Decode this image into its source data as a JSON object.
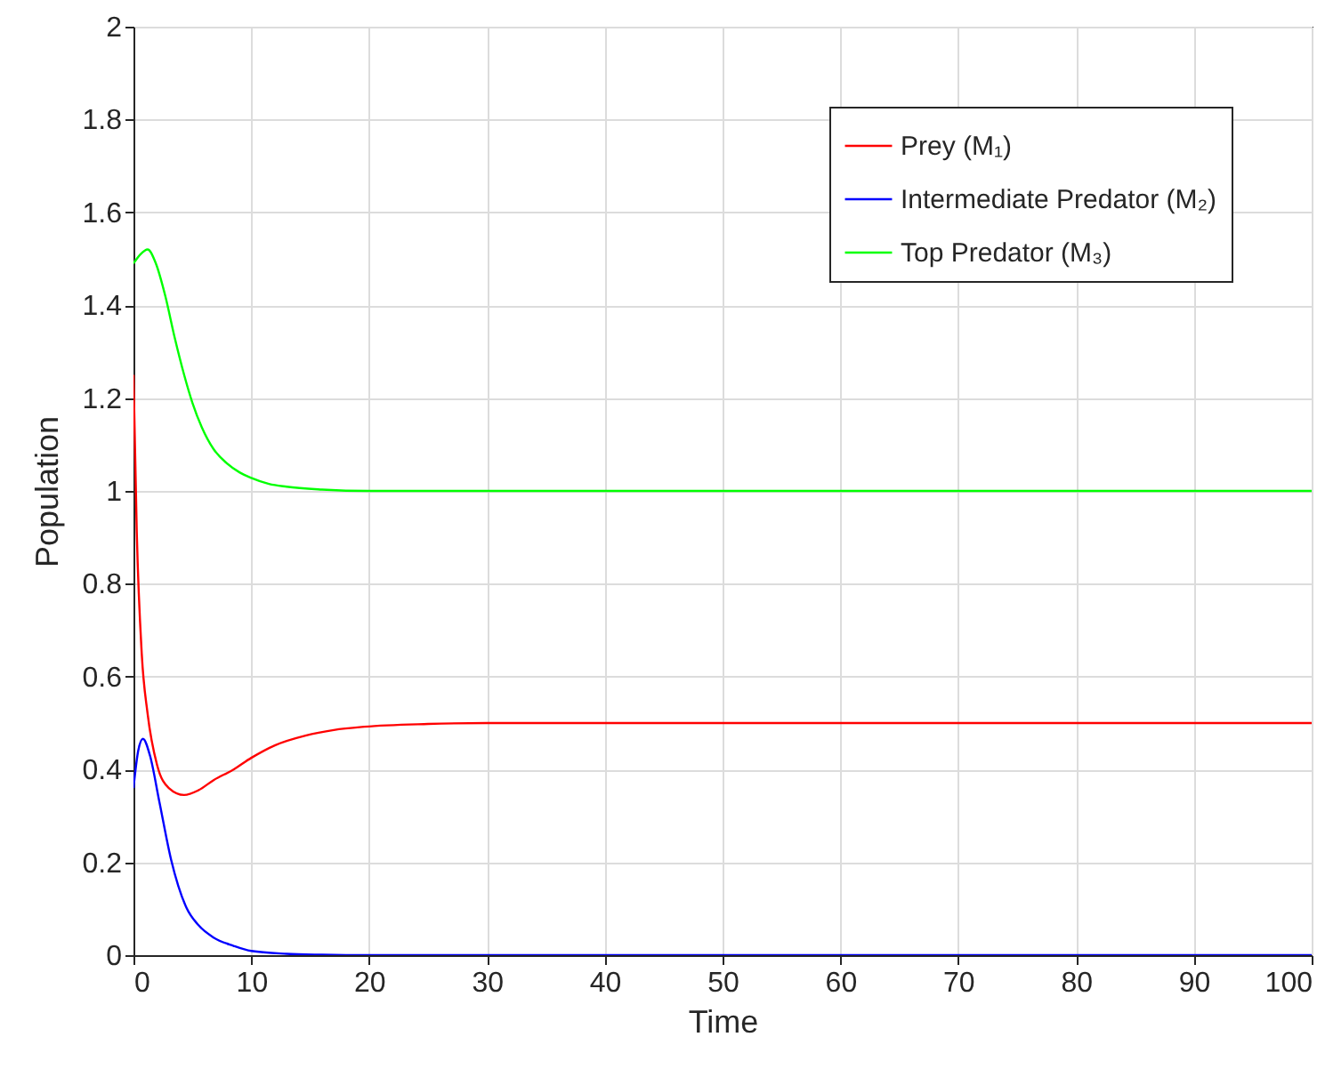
{
  "chart_data": {
    "type": "line",
    "xlabel": "Time",
    "ylabel": "Population",
    "xlim": [
      0,
      100
    ],
    "xticks": [
      0,
      10,
      20,
      30,
      40,
      50,
      60,
      70,
      80,
      90,
      100
    ],
    "ylim": [
      0,
      2
    ],
    "yticks": [
      0,
      0.2,
      0.4,
      0.6,
      0.8,
      1,
      1.2,
      1.4,
      1.6,
      1.8,
      2
    ],
    "grid": true,
    "legend": "top right",
    "line_style": "solid",
    "marker": "none",
    "series": [
      {
        "name": "Prey (M₁)",
        "color": "#ff0000",
        "x": [
          0,
          0.28,
          0.7,
          1.2,
          2,
          3,
          4.3,
          5.5,
          6.8,
          8.5,
          10,
          12,
          14.6,
          17,
          19.6,
          25,
          30,
          40,
          50,
          60,
          70,
          80,
          90,
          100
        ],
        "values": [
          1.25,
          0.91,
          0.65,
          0.52,
          0.41,
          0.36,
          0.345,
          0.355,
          0.377,
          0.4,
          0.425,
          0.452,
          0.473,
          0.485,
          0.492,
          0.498,
          0.5,
          0.5,
          0.5,
          0.5,
          0.5,
          0.5,
          0.5,
          0.5
        ]
      },
      {
        "name": "Intermediate Predator (M₂)",
        "color": "#0000ff",
        "x": [
          0,
          0.4,
          0.8,
          1.4,
          2.2,
          3.2,
          4.5,
          5.5,
          6.8,
          8.5,
          10,
          13,
          16,
          20,
          30,
          40,
          50,
          60,
          70,
          80,
          90,
          100
        ],
        "values": [
          0.36,
          0.44,
          0.466,
          0.43,
          0.33,
          0.205,
          0.102,
          0.065,
          0.038,
          0.02,
          0.009,
          0.003,
          0.001,
          0,
          0,
          0,
          0,
          0,
          0,
          0,
          0,
          0
        ]
      },
      {
        "name": "Top Predator (M₃)",
        "color": "#00ff00",
        "x": [
          0,
          0.6,
          1.2,
          1.9,
          2.7,
          3.5,
          4.3,
          5,
          5.8,
          6.8,
          7.9,
          9,
          10,
          11.5,
          13,
          16,
          20,
          30,
          40,
          50,
          60,
          70,
          80,
          90,
          100
        ],
        "values": [
          1.49,
          1.51,
          1.52,
          1.49,
          1.42,
          1.33,
          1.25,
          1.19,
          1.137,
          1.09,
          1.06,
          1.04,
          1.028,
          1.015,
          1.009,
          1.003,
          1,
          1,
          1,
          1,
          1,
          1,
          1,
          1,
          1
        ]
      }
    ]
  }
}
